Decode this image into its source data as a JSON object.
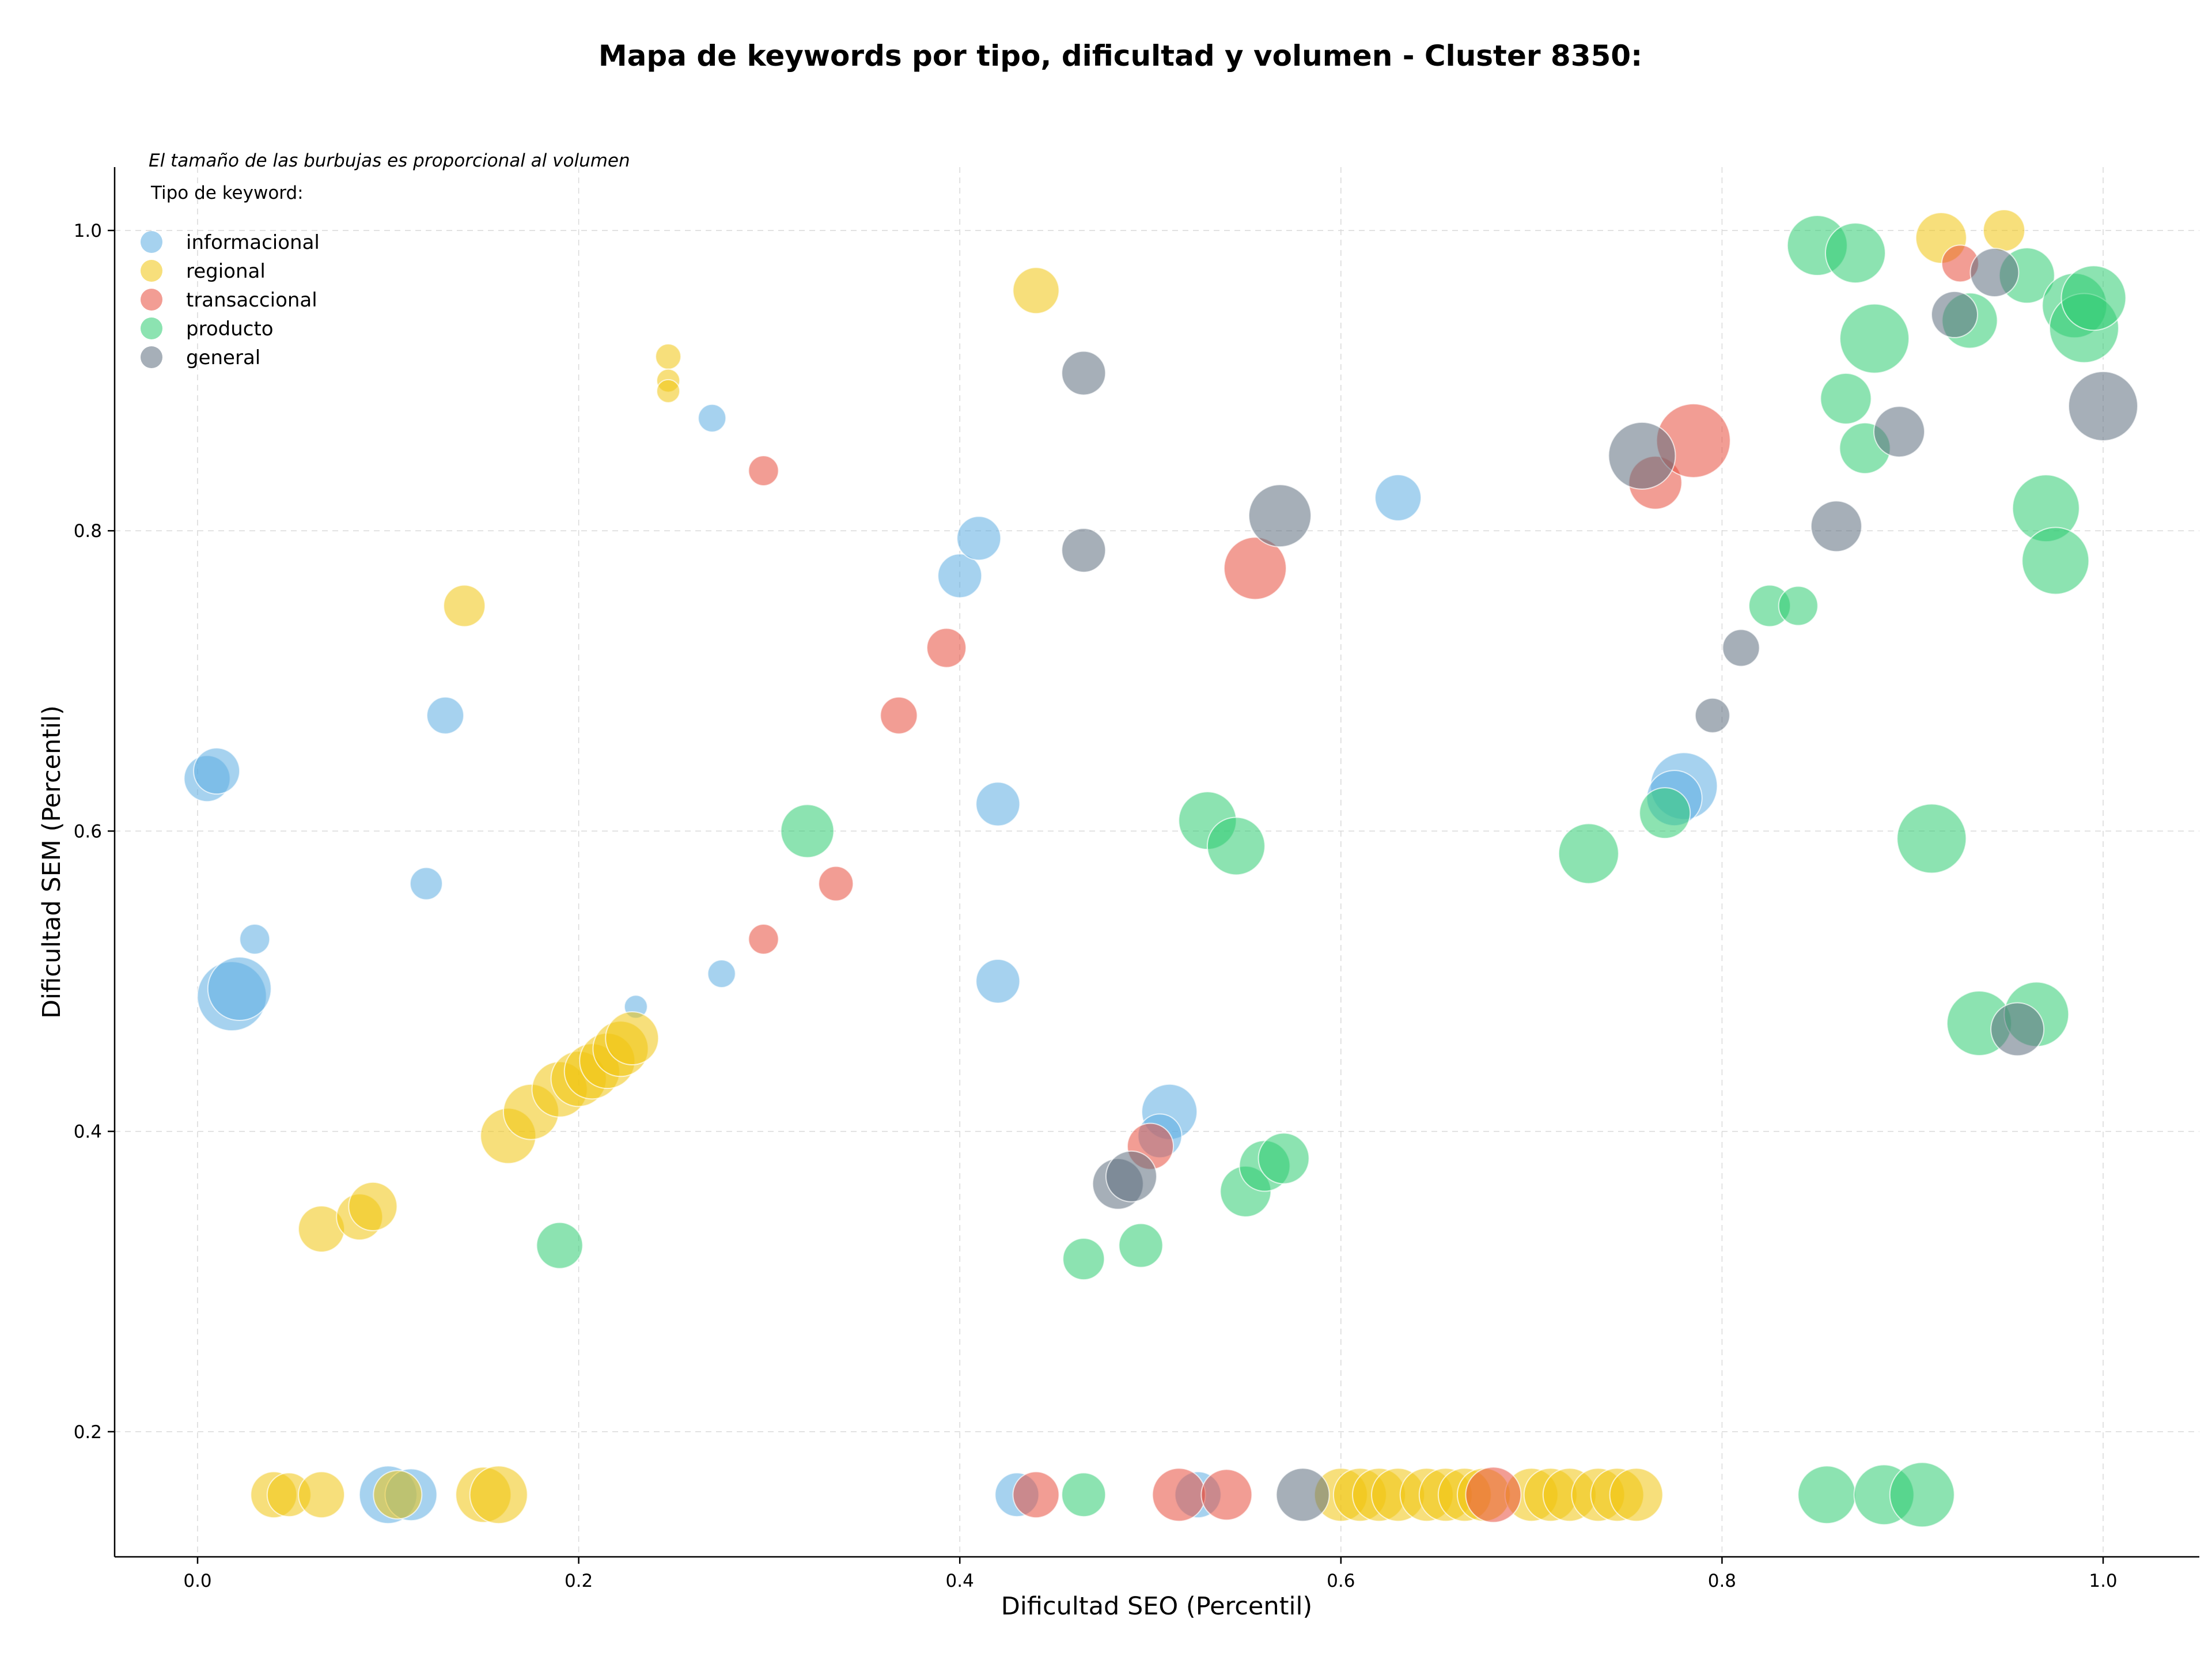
{
  "chart_data": {
    "type": "scatter",
    "title": "Mapa de keywords por tipo, dificultad y volumen - Cluster 8350:",
    "xlabel": "Dificultad SEO (Percentil)",
    "ylabel": "Dificultad SEM (Percentil)",
    "xlim": [
      -0.045,
      1.05
    ],
    "ylim": [
      0.12,
      1.04
    ],
    "x_ticks": [
      "0.0",
      "0.2",
      "0.4",
      "0.6",
      "0.8",
      "1.0"
    ],
    "y_ticks": [
      "0.2",
      "0.4",
      "0.6",
      "0.8",
      "1.0"
    ],
    "grid": true,
    "size_note": "El tamaño de las burbujas es proporcional al volumen",
    "legend_title": "Tipo de keyword:",
    "legend_position": "upper-left",
    "series": [
      {
        "name": "informacional",
        "color": "#5dade2",
        "points": [
          {
            "x": 0.005,
            "y": 0.635,
            "r": 40
          },
          {
            "x": 0.01,
            "y": 0.64,
            "r": 40
          },
          {
            "x": 0.018,
            "y": 0.49,
            "r": 60
          },
          {
            "x": 0.022,
            "y": 0.495,
            "r": 55
          },
          {
            "x": 0.03,
            "y": 0.528,
            "r": 26
          },
          {
            "x": 0.12,
            "y": 0.565,
            "r": 28
          },
          {
            "x": 0.13,
            "y": 0.677,
            "r": 32
          },
          {
            "x": 0.23,
            "y": 0.483,
            "r": 20
          },
          {
            "x": 0.27,
            "y": 0.875,
            "r": 24
          },
          {
            "x": 0.275,
            "y": 0.505,
            "r": 24
          },
          {
            "x": 0.4,
            "y": 0.77,
            "r": 38
          },
          {
            "x": 0.41,
            "y": 0.795,
            "r": 38
          },
          {
            "x": 0.42,
            "y": 0.618,
            "r": 38
          },
          {
            "x": 0.42,
            "y": 0.5,
            "r": 38
          },
          {
            "x": 0.51,
            "y": 0.413,
            "r": 48
          },
          {
            "x": 0.505,
            "y": 0.397,
            "r": 38
          },
          {
            "x": 0.63,
            "y": 0.822,
            "r": 40
          },
          {
            "x": 0.78,
            "y": 0.63,
            "r": 58
          },
          {
            "x": 0.775,
            "y": 0.622,
            "r": 48
          },
          {
            "x": 0.1,
            "y": 0.158,
            "r": 50
          },
          {
            "x": 0.112,
            "y": 0.158,
            "r": 45
          },
          {
            "x": 0.43,
            "y": 0.158,
            "r": 38
          },
          {
            "x": 0.525,
            "y": 0.158,
            "r": 40
          }
        ]
      },
      {
        "name": "regional",
        "color": "#f1c40f",
        "points": [
          {
            "x": 0.04,
            "y": 0.158,
            "r": 40
          },
          {
            "x": 0.048,
            "y": 0.158,
            "r": 38
          },
          {
            "x": 0.065,
            "y": 0.158,
            "r": 40
          },
          {
            "x": 0.065,
            "y": 0.335,
            "r": 40
          },
          {
            "x": 0.085,
            "y": 0.343,
            "r": 40
          },
          {
            "x": 0.092,
            "y": 0.35,
            "r": 42
          },
          {
            "x": 0.105,
            "y": 0.158,
            "r": 42
          },
          {
            "x": 0.14,
            "y": 0.75,
            "r": 36
          },
          {
            "x": 0.15,
            "y": 0.158,
            "r": 48
          },
          {
            "x": 0.158,
            "y": 0.158,
            "r": 50
          },
          {
            "x": 0.163,
            "y": 0.397,
            "r": 48
          },
          {
            "x": 0.175,
            "y": 0.413,
            "r": 48
          },
          {
            "x": 0.19,
            "y": 0.428,
            "r": 48
          },
          {
            "x": 0.2,
            "y": 0.435,
            "r": 48
          },
          {
            "x": 0.207,
            "y": 0.44,
            "r": 48
          },
          {
            "x": 0.215,
            "y": 0.447,
            "r": 48
          },
          {
            "x": 0.222,
            "y": 0.455,
            "r": 48
          },
          {
            "x": 0.228,
            "y": 0.462,
            "r": 46
          },
          {
            "x": 0.247,
            "y": 0.916,
            "r": 22
          },
          {
            "x": 0.247,
            "y": 0.9,
            "r": 20
          },
          {
            "x": 0.247,
            "y": 0.893,
            "r": 20
          },
          {
            "x": 0.44,
            "y": 0.96,
            "r": 40
          },
          {
            "x": 0.6,
            "y": 0.158,
            "r": 46
          },
          {
            "x": 0.61,
            "y": 0.158,
            "r": 46
          },
          {
            "x": 0.62,
            "y": 0.158,
            "r": 46
          },
          {
            "x": 0.63,
            "y": 0.158,
            "r": 46
          },
          {
            "x": 0.645,
            "y": 0.158,
            "r": 46
          },
          {
            "x": 0.655,
            "y": 0.158,
            "r": 46
          },
          {
            "x": 0.665,
            "y": 0.158,
            "r": 46
          },
          {
            "x": 0.675,
            "y": 0.158,
            "r": 46
          },
          {
            "x": 0.7,
            "y": 0.158,
            "r": 46
          },
          {
            "x": 0.71,
            "y": 0.158,
            "r": 46
          },
          {
            "x": 0.72,
            "y": 0.158,
            "r": 46
          },
          {
            "x": 0.735,
            "y": 0.158,
            "r": 46
          },
          {
            "x": 0.745,
            "y": 0.158,
            "r": 46
          },
          {
            "x": 0.755,
            "y": 0.158,
            "r": 46
          },
          {
            "x": 0.915,
            "y": 0.995,
            "r": 44
          },
          {
            "x": 0.948,
            "y": 1.0,
            "r": 36
          }
        ]
      },
      {
        "name": "transaccional",
        "color": "#e74c3c",
        "points": [
          {
            "x": 0.297,
            "y": 0.84,
            "r": 26
          },
          {
            "x": 0.297,
            "y": 0.528,
            "r": 26
          },
          {
            "x": 0.335,
            "y": 0.565,
            "r": 30
          },
          {
            "x": 0.368,
            "y": 0.677,
            "r": 32
          },
          {
            "x": 0.393,
            "y": 0.722,
            "r": 34
          },
          {
            "x": 0.5,
            "y": 0.39,
            "r": 40
          },
          {
            "x": 0.555,
            "y": 0.775,
            "r": 54
          },
          {
            "x": 0.765,
            "y": 0.832,
            "r": 46
          },
          {
            "x": 0.785,
            "y": 0.86,
            "r": 64
          },
          {
            "x": 0.925,
            "y": 0.978,
            "r": 32
          },
          {
            "x": 0.44,
            "y": 0.158,
            "r": 40
          },
          {
            "x": 0.515,
            "y": 0.158,
            "r": 46
          },
          {
            "x": 0.54,
            "y": 0.158,
            "r": 44
          },
          {
            "x": 0.68,
            "y": 0.158,
            "r": 48
          }
        ]
      },
      {
        "name": "producto",
        "color": "#2ecc71",
        "points": [
          {
            "x": 0.19,
            "y": 0.324,
            "r": 40
          },
          {
            "x": 0.32,
            "y": 0.6,
            "r": 46
          },
          {
            "x": 0.465,
            "y": 0.315,
            "r": 36
          },
          {
            "x": 0.495,
            "y": 0.324,
            "r": 38
          },
          {
            "x": 0.53,
            "y": 0.607,
            "r": 50
          },
          {
            "x": 0.545,
            "y": 0.59,
            "r": 50
          },
          {
            "x": 0.55,
            "y": 0.36,
            "r": 44
          },
          {
            "x": 0.56,
            "y": 0.377,
            "r": 44
          },
          {
            "x": 0.57,
            "y": 0.382,
            "r": 44
          },
          {
            "x": 0.73,
            "y": 0.585,
            "r": 52
          },
          {
            "x": 0.77,
            "y": 0.612,
            "r": 44
          },
          {
            "x": 0.825,
            "y": 0.75,
            "r": 36
          },
          {
            "x": 0.84,
            "y": 0.75,
            "r": 34
          },
          {
            "x": 0.85,
            "y": 0.99,
            "r": 52
          },
          {
            "x": 0.87,
            "y": 0.985,
            "r": 52
          },
          {
            "x": 0.865,
            "y": 0.888,
            "r": 44
          },
          {
            "x": 0.875,
            "y": 0.855,
            "r": 44
          },
          {
            "x": 0.88,
            "y": 0.928,
            "r": 60
          },
          {
            "x": 0.91,
            "y": 0.595,
            "r": 60
          },
          {
            "x": 0.93,
            "y": 0.94,
            "r": 48
          },
          {
            "x": 0.935,
            "y": 0.472,
            "r": 56
          },
          {
            "x": 0.96,
            "y": 0.97,
            "r": 48
          },
          {
            "x": 0.965,
            "y": 0.478,
            "r": 56
          },
          {
            "x": 0.97,
            "y": 0.815,
            "r": 58
          },
          {
            "x": 0.975,
            "y": 0.78,
            "r": 58
          },
          {
            "x": 0.985,
            "y": 0.95,
            "r": 56
          },
          {
            "x": 0.99,
            "y": 0.935,
            "r": 60
          },
          {
            "x": 0.995,
            "y": 0.955,
            "r": 56
          },
          {
            "x": 0.465,
            "y": 0.158,
            "r": 38
          },
          {
            "x": 0.855,
            "y": 0.158,
            "r": 50
          },
          {
            "x": 0.885,
            "y": 0.158,
            "r": 52
          },
          {
            "x": 0.905,
            "y": 0.158,
            "r": 56
          }
        ]
      },
      {
        "name": "general",
        "color": "#5d6d7e",
        "points": [
          {
            "x": 0.465,
            "y": 0.905,
            "r": 38
          },
          {
            "x": 0.465,
            "y": 0.787,
            "r": 38
          },
          {
            "x": 0.483,
            "y": 0.365,
            "r": 44
          },
          {
            "x": 0.49,
            "y": 0.37,
            "r": 44
          },
          {
            "x": 0.568,
            "y": 0.81,
            "r": 54
          },
          {
            "x": 0.758,
            "y": 0.85,
            "r": 58
          },
          {
            "x": 0.795,
            "y": 0.677,
            "r": 30
          },
          {
            "x": 0.81,
            "y": 0.722,
            "r": 32
          },
          {
            "x": 0.86,
            "y": 0.803,
            "r": 44
          },
          {
            "x": 0.893,
            "y": 0.866,
            "r": 44
          },
          {
            "x": 0.922,
            "y": 0.944,
            "r": 40
          },
          {
            "x": 0.943,
            "y": 0.972,
            "r": 42
          },
          {
            "x": 0.955,
            "y": 0.468,
            "r": 46
          },
          {
            "x": 1.0,
            "y": 0.883,
            "r": 60
          },
          {
            "x": 0.58,
            "y": 0.158,
            "r": 46
          }
        ]
      }
    ]
  }
}
